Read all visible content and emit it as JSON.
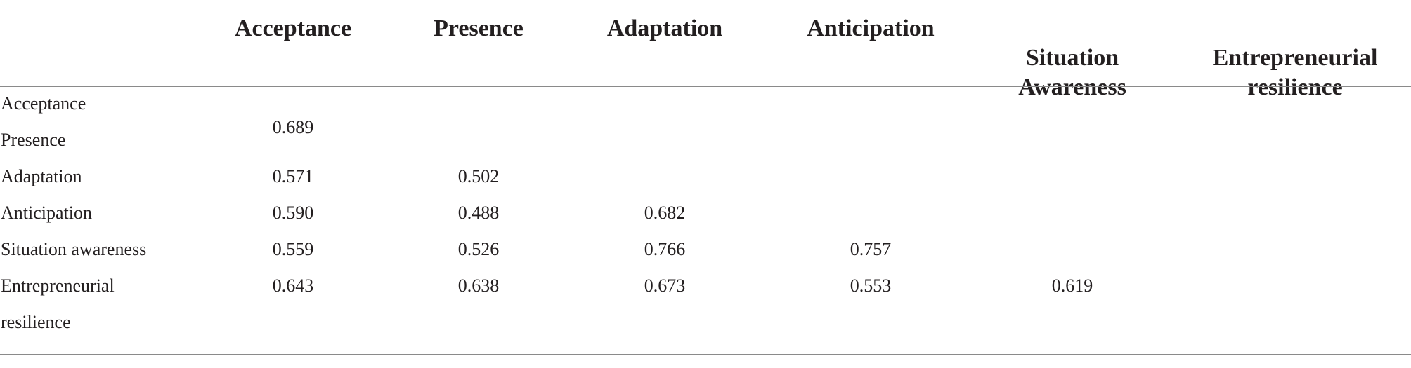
{
  "columns": [
    {
      "label": "Acceptance"
    },
    {
      "label": "Presence"
    },
    {
      "label": "Adaptation"
    },
    {
      "label": "Anticipation"
    },
    {
      "label": "Situation\nAwareness"
    },
    {
      "label": "Entrepreneurial\nresilience"
    }
  ],
  "rows": [
    {
      "label": "Acceptance",
      "cells": []
    },
    {
      "label": "Presence",
      "cells": [
        "0.689"
      ]
    },
    {
      "label": "Adaptation",
      "cells": [
        "0.571",
        "0.502"
      ]
    },
    {
      "label": "Anticipation",
      "cells": [
        "0.590",
        "0.488",
        "0.682"
      ]
    },
    {
      "label": "Situation awareness",
      "cells": [
        "0.559",
        "0.526",
        "0.766",
        "0.757"
      ]
    },
    {
      "label": "Entrepreneurial\nresilience",
      "cells": [
        "0.643",
        "0.638",
        "0.673",
        "0.553",
        "0.619"
      ]
    }
  ]
}
